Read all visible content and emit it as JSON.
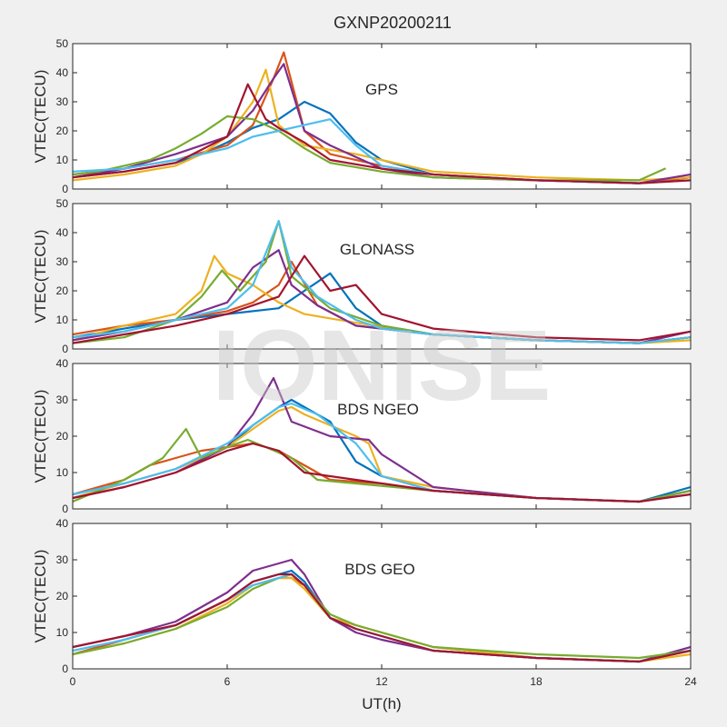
{
  "figure": {
    "title": "GXNP20200211",
    "xlabel": "UT(h)",
    "watermark": "IONISE"
  },
  "colors": [
    "#0072BD",
    "#D95319",
    "#EDB120",
    "#7E2F8E",
    "#77AC30",
    "#4DBEEE",
    "#A2142F"
  ],
  "chart_data": [
    {
      "type": "line",
      "label": "GPS",
      "ylabel": "VTEC(TECU)",
      "xlim": [
        0,
        24
      ],
      "ylim": [
        0,
        50
      ],
      "xticks": [
        0,
        6,
        12,
        18,
        24
      ],
      "yticks": [
        0,
        10,
        20,
        30,
        40,
        50
      ],
      "series": [
        {
          "x": [
            0,
            2,
            4,
            5,
            6,
            7,
            8,
            9,
            10,
            11,
            12,
            14,
            18,
            22,
            24
          ],
          "y": [
            4,
            6,
            9,
            12,
            16,
            21,
            24,
            30,
            26,
            16,
            10,
            5,
            3,
            2,
            4
          ]
        },
        {
          "x": [
            0,
            2,
            4,
            6,
            7,
            7.8,
            8.2,
            9,
            10,
            12,
            14,
            18,
            22,
            24
          ],
          "y": [
            5,
            7,
            10,
            15,
            22,
            38,
            47,
            20,
            12,
            8,
            5,
            3,
            2,
            4
          ]
        },
        {
          "x": [
            0,
            2,
            4,
            5,
            6,
            7,
            7.5,
            8,
            9,
            11,
            14,
            18,
            22,
            24
          ],
          "y": [
            3,
            5,
            8,
            12,
            18,
            30,
            41,
            22,
            15,
            12,
            6,
            4,
            3,
            4
          ]
        },
        {
          "x": [
            0,
            2,
            4,
            6,
            7,
            7.8,
            8.2,
            9,
            10,
            12,
            14,
            18,
            22,
            24
          ],
          "y": [
            4,
            7,
            12,
            18,
            27,
            38,
            43,
            20,
            15,
            7,
            4,
            3,
            2,
            5
          ]
        },
        {
          "x": [
            0,
            1,
            3,
            4,
            5,
            6,
            7,
            8,
            9,
            10,
            12,
            14,
            18,
            22,
            23
          ],
          "y": [
            5,
            6,
            10,
            14,
            19,
            25,
            24,
            20,
            14,
            9,
            6,
            4,
            3,
            3,
            7
          ]
        },
        {
          "x": [
            0,
            2,
            4,
            6,
            7,
            8,
            9,
            10,
            11,
            12,
            14,
            18,
            22,
            24
          ],
          "y": [
            6,
            7,
            10,
            14,
            18,
            20,
            22,
            24,
            15,
            8,
            5,
            3,
            2,
            3
          ]
        },
        {
          "x": [
            0,
            2,
            4,
            6,
            6.8,
            7.5,
            8,
            9,
            10,
            12,
            14,
            18,
            22,
            24
          ],
          "y": [
            4,
            6,
            9,
            18,
            36,
            24,
            21,
            16,
            10,
            7,
            5,
            3,
            2,
            3
          ]
        }
      ]
    },
    {
      "type": "line",
      "label": "GLONASS",
      "ylabel": "VTEC(TECU)",
      "xlim": [
        0,
        24
      ],
      "ylim": [
        0,
        50
      ],
      "xticks": [
        0,
        6,
        12,
        18,
        24
      ],
      "yticks": [
        0,
        10,
        20,
        30,
        40,
        50
      ],
      "series": [
        {
          "x": [
            0,
            2,
            4,
            6,
            8,
            9,
            10,
            11,
            12,
            14,
            18,
            22,
            24
          ],
          "y": [
            4,
            7,
            10,
            12,
            14,
            20,
            26,
            14,
            8,
            5,
            3,
            2,
            4
          ]
        },
        {
          "x": [
            0,
            2,
            4,
            6,
            7,
            8,
            8.5,
            9.5,
            11,
            14,
            18,
            22,
            24
          ],
          "y": [
            5,
            8,
            10,
            13,
            16,
            22,
            30,
            15,
            8,
            5,
            3,
            2,
            4
          ]
        },
        {
          "x": [
            0,
            2,
            4,
            5,
            5.5,
            6,
            7,
            8,
            9,
            11,
            14,
            18,
            22,
            24
          ],
          "y": [
            3,
            8,
            12,
            20,
            32,
            26,
            22,
            16,
            12,
            9,
            5,
            3,
            2,
            3
          ]
        },
        {
          "x": [
            0,
            2,
            4,
            6,
            7,
            8,
            8.5,
            9.5,
            11,
            14,
            18,
            22,
            24
          ],
          "y": [
            3,
            6,
            10,
            16,
            28,
            34,
            22,
            15,
            8,
            5,
            3,
            2,
            6
          ]
        },
        {
          "x": [
            0,
            2,
            4,
            5,
            5.8,
            6.5,
            7.5,
            8,
            8.5,
            10,
            12,
            14,
            18,
            22,
            24
          ],
          "y": [
            2,
            4,
            10,
            18,
            27,
            20,
            30,
            44,
            25,
            14,
            8,
            5,
            3,
            2,
            4
          ]
        },
        {
          "x": [
            0,
            2,
            4,
            6,
            7,
            8,
            8.5,
            9.5,
            11,
            12,
            14,
            18,
            22,
            24
          ],
          "y": [
            4,
            6,
            10,
            14,
            22,
            44,
            28,
            18,
            10,
            7,
            5,
            3,
            2,
            4
          ]
        },
        {
          "x": [
            0,
            2,
            4,
            6,
            8,
            9,
            10,
            11,
            12,
            14,
            18,
            22,
            24
          ],
          "y": [
            2,
            5,
            8,
            12,
            18,
            32,
            20,
            22,
            12,
            7,
            4,
            3,
            6
          ]
        }
      ]
    },
    {
      "type": "line",
      "label": "BDS NGEO",
      "ylabel": "VTEC(TECU)",
      "xlim": [
        0,
        24
      ],
      "ylim": [
        0,
        40
      ],
      "xticks": [
        0,
        6,
        12,
        18,
        24
      ],
      "yticks": [
        0,
        10,
        20,
        30,
        40
      ],
      "series": [
        {
          "x": [
            0,
            2,
            4,
            6,
            7,
            8,
            8.5,
            9,
            10,
            11,
            12,
            14,
            18,
            22,
            24
          ],
          "y": [
            4,
            7,
            11,
            17,
            23,
            28,
            30,
            28,
            24,
            13,
            9,
            5,
            3,
            2,
            6
          ]
        },
        {
          "x": [
            0,
            2,
            3,
            4,
            5,
            6,
            7,
            8,
            9,
            10,
            12,
            14,
            18,
            22,
            24
          ],
          "y": [
            4,
            8,
            12,
            14,
            16,
            17,
            18,
            16,
            12,
            8,
            7,
            5,
            3,
            2,
            5
          ]
        },
        {
          "x": [
            0,
            2,
            4,
            6,
            7,
            8,
            8.5,
            9,
            10,
            11,
            11.5,
            12,
            14,
            18,
            22,
            24
          ],
          "y": [
            3,
            7,
            11,
            17,
            22,
            27,
            28,
            26,
            23,
            20,
            18,
            9,
            6,
            3,
            2,
            4
          ]
        },
        {
          "x": [
            0,
            2,
            4,
            6,
            7,
            7.8,
            8.5,
            10,
            11.5,
            12,
            14,
            18,
            22,
            24
          ],
          "y": [
            3,
            6,
            10,
            17,
            26,
            36,
            24,
            20,
            19,
            15,
            6,
            3,
            2,
            5
          ]
        },
        {
          "x": [
            0,
            2,
            3.5,
            4.4,
            5,
            6,
            6.8,
            7.5,
            8.5,
            9.5,
            11,
            14,
            18,
            22,
            24
          ],
          "y": [
            2,
            8,
            14,
            22,
            14,
            17,
            19,
            17,
            14,
            8,
            7,
            5,
            3,
            2,
            5
          ]
        },
        {
          "x": [
            0,
            2,
            4,
            6,
            7,
            8,
            8.5,
            9.5,
            11,
            12,
            14,
            18,
            22,
            24
          ],
          "y": [
            4,
            7,
            11,
            18,
            23,
            28,
            29,
            26,
            18,
            9,
            5,
            3,
            2,
            4
          ]
        },
        {
          "x": [
            0,
            2,
            4,
            6,
            7,
            8,
            9,
            11,
            14,
            18,
            22,
            24
          ],
          "y": [
            3,
            6,
            10,
            16,
            18,
            16,
            10,
            8,
            5,
            3,
            2,
            4
          ]
        }
      ]
    },
    {
      "type": "line",
      "label": "BDS GEO",
      "ylabel": "VTEC(TECU)",
      "xlim": [
        0,
        24
      ],
      "ylim": [
        0,
        40
      ],
      "xticks": [
        0,
        6,
        12,
        18,
        24
      ],
      "yticks": [
        0,
        10,
        20,
        30,
        40
      ],
      "series": [
        {
          "x": [
            0,
            2,
            4,
            6,
            7,
            8,
            8.5,
            9,
            10,
            11,
            12,
            14,
            18,
            22,
            24
          ],
          "y": [
            4,
            8,
            12,
            19,
            24,
            26,
            27,
            24,
            14,
            11,
            9,
            5,
            3,
            2,
            6
          ]
        },
        {
          "x": [
            0,
            2,
            4,
            6,
            7,
            8,
            8.5,
            9,
            10,
            11,
            12,
            14,
            18,
            22,
            24
          ],
          "y": [
            4,
            8,
            12,
            19,
            23,
            25,
            25,
            23,
            14,
            12,
            10,
            6,
            3,
            2,
            5
          ]
        },
        {
          "x": [
            0,
            2,
            4,
            6,
            7,
            8,
            8.5,
            9,
            10,
            11,
            12,
            14,
            18,
            22,
            24
          ],
          "y": [
            4,
            7,
            11,
            18,
            23,
            25,
            25,
            22,
            14,
            12,
            10,
            6,
            3,
            2,
            4
          ]
        },
        {
          "x": [
            0,
            2,
            4,
            6,
            7,
            8,
            8.5,
            9,
            10,
            11,
            12,
            14,
            18,
            22,
            24
          ],
          "y": [
            6,
            9,
            13,
            21,
            27,
            29,
            30,
            26,
            14,
            10,
            8,
            5,
            3,
            2,
            6
          ]
        },
        {
          "x": [
            0,
            2,
            4,
            6,
            7,
            8,
            8.5,
            9,
            10,
            11,
            12,
            14,
            18,
            22,
            24
          ],
          "y": [
            4,
            7,
            11,
            17,
            22,
            25,
            26,
            23,
            15,
            12,
            10,
            6,
            4,
            3,
            5
          ]
        },
        {
          "x": [
            0,
            2,
            4,
            6,
            7,
            8,
            8.5,
            9,
            10,
            11,
            12,
            14,
            18,
            22,
            24
          ],
          "y": [
            5,
            8,
            12,
            19,
            23,
            25,
            26,
            23,
            14,
            11,
            9,
            5,
            3,
            2,
            5
          ]
        },
        {
          "x": [
            0,
            2,
            4,
            6,
            7,
            8,
            8.5,
            9,
            10,
            11,
            12,
            14,
            18,
            22,
            24
          ],
          "y": [
            6,
            9,
            12,
            19,
            24,
            26,
            26,
            23,
            14,
            11,
            9,
            5,
            3,
            2,
            5
          ]
        }
      ]
    }
  ]
}
